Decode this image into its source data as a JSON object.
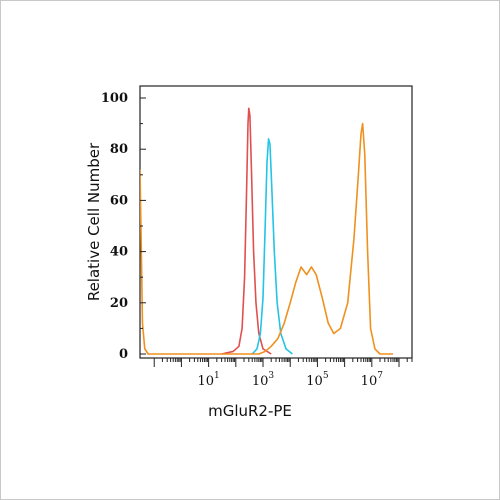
{
  "chart_data": {
    "type": "line",
    "title": "",
    "xlabel": "mGluR2-PE",
    "ylabel": "Relative Cell Number",
    "xscale": "log",
    "xlim": [
      0.03,
      300000000
    ],
    "ylim": [
      0,
      100
    ],
    "yticks": [
      0,
      20,
      40,
      60,
      80,
      100
    ],
    "xticks": [
      {
        "base": "10",
        "exp": "1",
        "value": 10
      },
      {
        "base": "10",
        "exp": "3",
        "value": 1000
      },
      {
        "base": "10",
        "exp": "5",
        "value": 100000
      },
      {
        "base": "10",
        "exp": "7",
        "value": 10000000
      }
    ],
    "grid": false,
    "legend": "none",
    "series": [
      {
        "color": "#e0504f",
        "points": [
          [
            30,
            0
          ],
          [
            80,
            1
          ],
          [
            130,
            3
          ],
          [
            170,
            10
          ],
          [
            210,
            30
          ],
          [
            250,
            65
          ],
          [
            280,
            90
          ],
          [
            300,
            96
          ],
          [
            330,
            93
          ],
          [
            380,
            70
          ],
          [
            450,
            40
          ],
          [
            550,
            20
          ],
          [
            700,
            8
          ],
          [
            1000,
            2
          ],
          [
            2000,
            0
          ]
        ]
      },
      {
        "color": "#23c4e6",
        "points": [
          [
            400,
            0
          ],
          [
            600,
            2
          ],
          [
            800,
            8
          ],
          [
            1000,
            22
          ],
          [
            1200,
            50
          ],
          [
            1400,
            75
          ],
          [
            1600,
            84
          ],
          [
            1800,
            82
          ],
          [
            2100,
            65
          ],
          [
            2600,
            40
          ],
          [
            3300,
            20
          ],
          [
            4500,
            8
          ],
          [
            7000,
            2
          ],
          [
            12000,
            0
          ]
        ]
      },
      {
        "color": "#f0901e",
        "points": [
          [
            0.03,
            72
          ],
          [
            0.033,
            45
          ],
          [
            0.037,
            12
          ],
          [
            0.045,
            2
          ],
          [
            0.06,
            0
          ],
          [
            1,
            0
          ],
          [
            100,
            0
          ],
          [
            700,
            0
          ],
          [
            1200,
            1
          ],
          [
            2000,
            3
          ],
          [
            3500,
            6
          ],
          [
            6000,
            12
          ],
          [
            10000,
            20
          ],
          [
            16000,
            28
          ],
          [
            25000,
            34
          ],
          [
            40000,
            31
          ],
          [
            60000,
            34
          ],
          [
            90000,
            31
          ],
          [
            150000,
            22
          ],
          [
            250000,
            12
          ],
          [
            400000,
            8
          ],
          [
            700000,
            10
          ],
          [
            1300000,
            20
          ],
          [
            2200000,
            45
          ],
          [
            3200000,
            70
          ],
          [
            4000000,
            86
          ],
          [
            4600000,
            90
          ],
          [
            5500000,
            78
          ],
          [
            7000000,
            40
          ],
          [
            9000000,
            10
          ],
          [
            13000000,
            2
          ],
          [
            20000000,
            0
          ],
          [
            60000000,
            0
          ]
        ]
      }
    ]
  }
}
